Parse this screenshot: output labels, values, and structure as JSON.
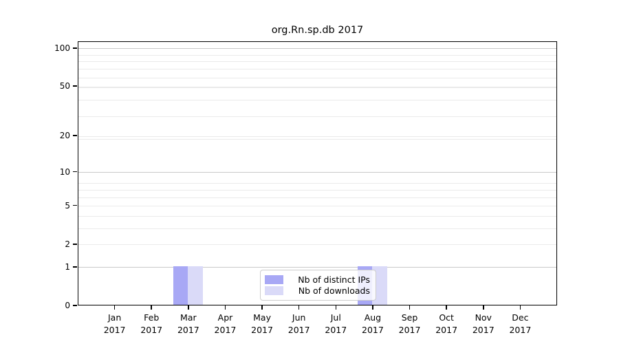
{
  "chart_data": {
    "type": "bar",
    "title": "org.Rn.sp.db 2017",
    "categories": [
      "Jan",
      "Feb",
      "Mar",
      "Apr",
      "May",
      "Jun",
      "Jul",
      "Aug",
      "Sep",
      "Oct",
      "Nov",
      "Dec"
    ],
    "category_year": "2017",
    "series": [
      {
        "name": "Nb of distinct IPs",
        "color": "#a8a8f5",
        "values": [
          0,
          0,
          1,
          0,
          0,
          0,
          0,
          1,
          0,
          0,
          0,
          0
        ]
      },
      {
        "name": "Nb of downloads",
        "color": "#dadaf8",
        "values": [
          0,
          0,
          1,
          0,
          0,
          0,
          0,
          1,
          0,
          0,
          0,
          0
        ]
      }
    ],
    "yticks": [
      0,
      1,
      2,
      5,
      10,
      20,
      50,
      100
    ],
    "yscale": "log1p",
    "ylim": [
      0,
      113
    ],
    "xlabel": "",
    "ylabel": "",
    "grid": "both",
    "legend_position": "inside-bottom-center",
    "colors": {
      "major_grid": "#c9c9c9",
      "minor_grid": "#eaeaea",
      "spine": "#000000",
      "background": "#ffffff"
    }
  }
}
